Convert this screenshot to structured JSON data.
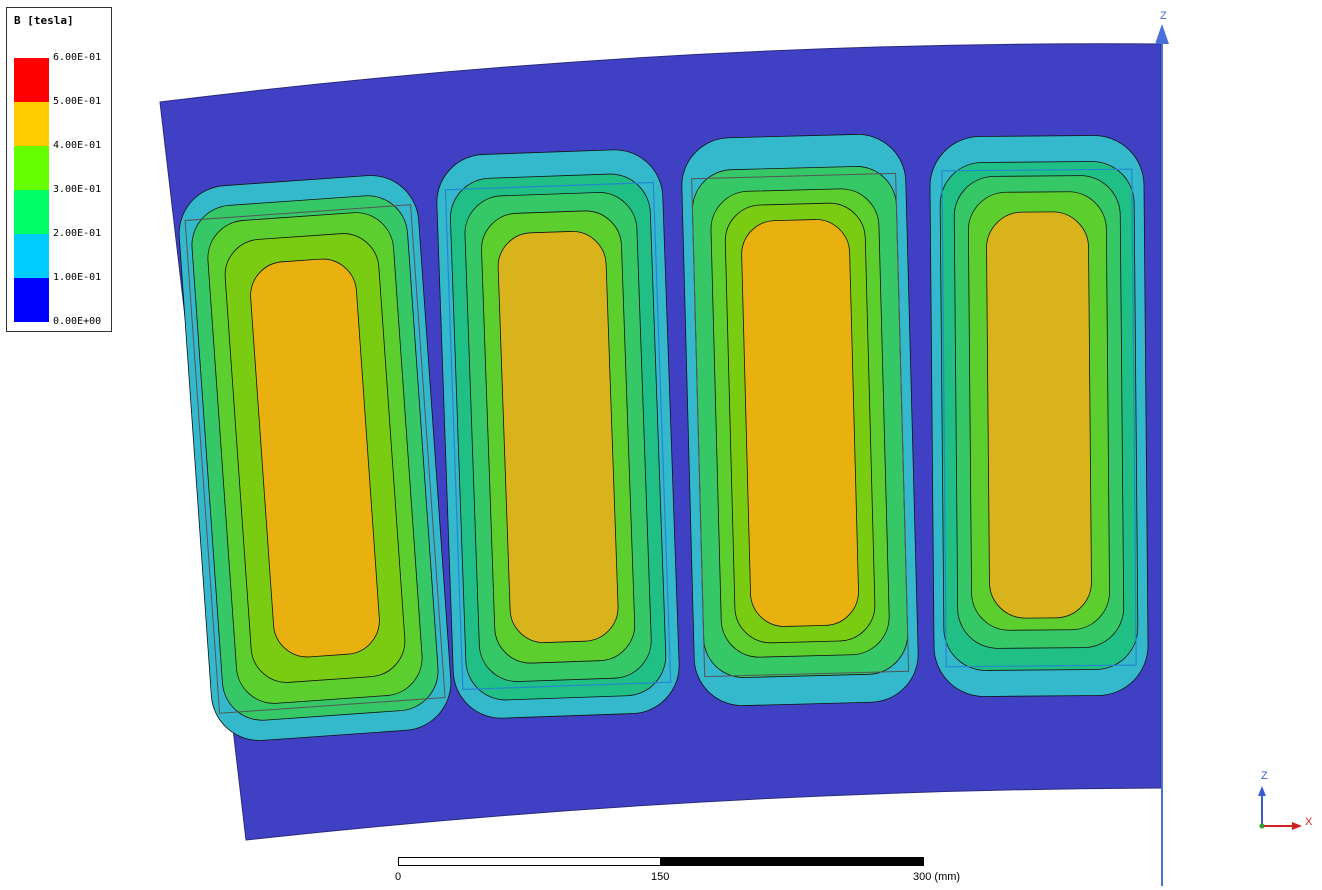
{
  "legend": {
    "title": "B [tesla]",
    "ticks": [
      "6.00E-01",
      "5.00E-01",
      "4.00E-01",
      "3.00E-01",
      "2.00E-01",
      "1.00E-01",
      "0.00E+00"
    ],
    "colors": [
      "#ff0000",
      "#ffcc00",
      "#66ff00",
      "#00ff66",
      "#00ccff",
      "#0000ff"
    ]
  },
  "field_colors": {
    "background": "#4040c4",
    "band_low": "#34b8cc",
    "band_mid": "#36c766",
    "band_green": "#5ccf2f",
    "band_yellowgreen": "#79cc12",
    "core": "#e8b110"
  },
  "scale": {
    "labels": [
      "0",
      "150",
      "300 (mm)"
    ]
  },
  "axes": {
    "main_z": "Z",
    "triad_z": "Z",
    "triad_x": "X"
  }
}
